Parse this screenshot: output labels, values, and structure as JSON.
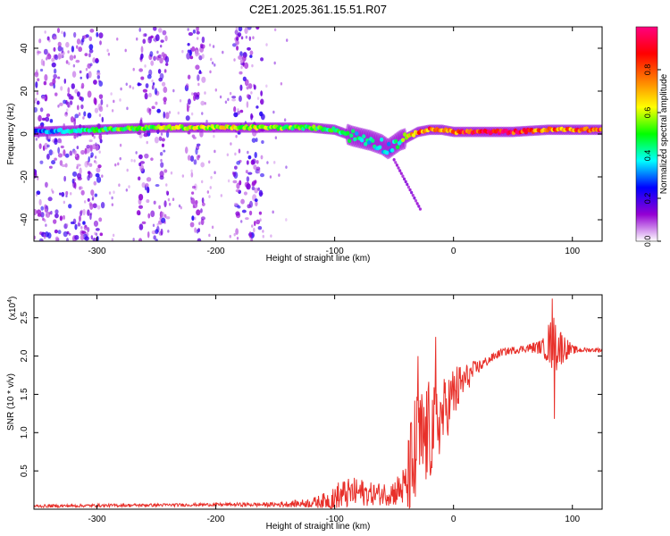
{
  "title": "C2E1.2025.361.15.51.R07",
  "colorbar": {
    "label": "Normalized spectral amplitude",
    "ticks": [
      "0.0",
      "0.2",
      "0.4",
      "0.6",
      "0.8"
    ],
    "colors": [
      "#ffffff",
      "#9400d3",
      "#0000ff",
      "#00ffff",
      "#00ff00",
      "#ffff00",
      "#ff7f00",
      "#ff0000",
      "#ff0080"
    ]
  },
  "chart_data": [
    {
      "type": "heatmap",
      "name": "spectrogram",
      "xlabel": "Height of straight line (km)",
      "ylabel": "Frequency (Hz)",
      "xlim": [
        -353,
        125
      ],
      "ylim": [
        -50,
        50
      ],
      "xticks": [
        -300,
        -200,
        -100,
        0,
        100
      ],
      "xtick_labels": [
        "-300",
        "-200",
        "-100",
        "0",
        "100"
      ],
      "yticks": [
        40,
        20,
        0,
        -20,
        -40
      ],
      "ytick_labels": [
        "40",
        "20",
        "0",
        "-20",
        "-40"
      ],
      "ridge": {
        "x": [
          -353,
          -300,
          -250,
          -200,
          -150,
          -120,
          -100,
          -85,
          -70,
          -60,
          -55,
          -50,
          -45,
          -40,
          -30,
          -20,
          -10,
          0,
          20,
          50,
          80,
          100,
          125
        ],
        "freq": [
          1,
          2,
          3,
          3,
          3,
          3,
          2,
          -1,
          -3,
          -5,
          -7,
          -5,
          -3,
          -2,
          1,
          2,
          2,
          1,
          1,
          1,
          2,
          2,
          2
        ],
        "amplitude": [
          0.3,
          0.5,
          0.6,
          0.65,
          0.6,
          0.55,
          0.5,
          0.45,
          0.4,
          0.4,
          0.35,
          0.4,
          0.5,
          0.6,
          0.8,
          0.85,
          0.85,
          0.85,
          0.95,
          0.95,
          0.8,
          0.85,
          0.85
        ]
      },
      "noise_bands_x": [
        [
          -353,
          -295
        ],
        [
          -265,
          -240
        ],
        [
          -225,
          -210
        ],
        [
          -185,
          -160
        ]
      ],
      "tail": {
        "x": [
          -50,
          -28
        ],
        "freq": [
          -12,
          -35
        ]
      }
    },
    {
      "type": "line",
      "name": "snr",
      "xlabel": "Height of straight line (km)",
      "ylabel": "SNR (10 * v/v)",
      "multiplier": "(x10",
      "multiplier_exp": "4",
      "multiplier_close": ")",
      "xlim": [
        -353,
        125
      ],
      "ylim": [
        0,
        2.8
      ],
      "xticks": [
        -300,
        -200,
        -100,
        0,
        100
      ],
      "xtick_labels": [
        "-300",
        "-200",
        "-100",
        "0",
        "100"
      ],
      "yticks": [
        0.5,
        1.0,
        1.5,
        2.0,
        2.5
      ],
      "ytick_labels": [
        "0.5",
        "1.0",
        "1.5",
        "2.0",
        "2.5"
      ],
      "color": "#e8302a",
      "envelope": {
        "x": [
          -353,
          -280,
          -200,
          -150,
          -120,
          -105,
          -100,
          -90,
          -80,
          -70,
          -60,
          -50,
          -40,
          -35,
          -30,
          -25,
          -20,
          -15,
          -10,
          -5,
          0,
          10,
          20,
          30,
          40,
          60,
          75,
          80,
          85,
          90,
          95,
          100,
          110,
          125
        ],
        "base": [
          0.04,
          0.05,
          0.06,
          0.06,
          0.08,
          0.12,
          0.15,
          0.2,
          0.22,
          0.2,
          0.2,
          0.22,
          0.3,
          0.5,
          0.8,
          0.9,
          1.0,
          1.1,
          1.2,
          1.35,
          1.5,
          1.7,
          1.85,
          1.95,
          2.05,
          2.1,
          2.12,
          2.15,
          2.15,
          2.12,
          2.1,
          2.08,
          2.08,
          2.08
        ],
        "amp": [
          0.02,
          0.02,
          0.02,
          0.03,
          0.06,
          0.12,
          0.2,
          0.2,
          0.2,
          0.15,
          0.15,
          0.18,
          0.3,
          0.9,
          0.8,
          0.7,
          0.7,
          0.5,
          0.5,
          0.4,
          0.4,
          0.2,
          0.1,
          0.06,
          0.05,
          0.05,
          0.1,
          0.3,
          0.4,
          0.25,
          0.15,
          0.06,
          0.03,
          0.03
        ]
      },
      "peaks": [
        {
          "x": -30,
          "y": 2.0
        },
        {
          "x": -15,
          "y": 2.25
        },
        {
          "x": 83,
          "y": 2.75
        },
        {
          "x": 85,
          "y": 1.18
        }
      ]
    }
  ]
}
